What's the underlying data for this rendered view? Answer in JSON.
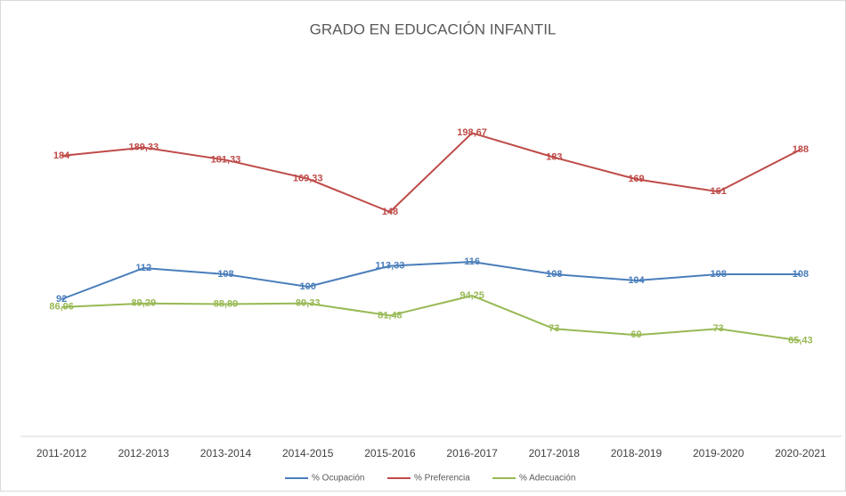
{
  "chart_data": {
    "type": "line",
    "title": "GRADO EN EDUCACIÓN INFANTIL",
    "categories": [
      "2011-2012",
      "2012-2013",
      "2013-2014",
      "2014-2015",
      "2015-2016",
      "2016-2017",
      "2017-2018",
      "2018-2019",
      "2019-2020",
      "2020-2021"
    ],
    "series": [
      {
        "name": "% Ocupación",
        "color": "#4a7ebb",
        "values": [
          92,
          112,
          108,
          100,
          113.33,
          116,
          108,
          104,
          108,
          108
        ],
        "value_labels": [
          "92",
          "112",
          "108",
          "100",
          "113,33",
          "116",
          "108",
          "104",
          "108",
          "108"
        ]
      },
      {
        "name": "% Preferencia",
        "color": "#be4b48",
        "values": [
          184,
          189.33,
          181.33,
          169.33,
          148,
          198.67,
          183,
          169,
          161,
          188
        ],
        "value_labels": [
          "184",
          "189,33",
          "181,33",
          "169,33",
          "148",
          "198,67",
          "183",
          "169",
          "161",
          "188"
        ]
      },
      {
        "name": "% Adecuación",
        "color": "#98b954",
        "values": [
          86.96,
          89.29,
          88.89,
          89.33,
          81.48,
          94.25,
          73,
          69,
          73,
          65.43
        ],
        "value_labels": [
          "86,96",
          "89,29",
          "88,89",
          "89,33",
          "81,48",
          "94,25",
          "73",
          "69",
          "73",
          "65,43"
        ]
      }
    ],
    "legend": "bottom"
  }
}
